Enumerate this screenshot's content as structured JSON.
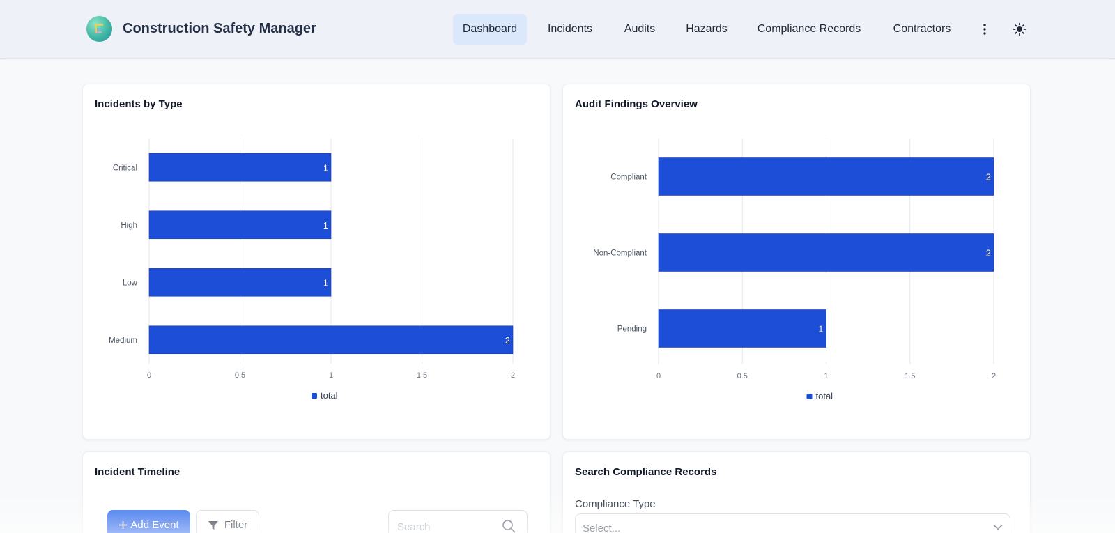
{
  "app": {
    "title": "Construction Safety Manager"
  },
  "nav": {
    "items": [
      {
        "label": "Dashboard",
        "active": true
      },
      {
        "label": "Incidents",
        "active": false
      },
      {
        "label": "Audits",
        "active": false
      },
      {
        "label": "Hazards",
        "active": false
      },
      {
        "label": "Compliance Records",
        "active": false
      },
      {
        "label": "Contractors",
        "active": false
      }
    ],
    "more_icon": "more-vertical-icon",
    "theme_icon": "sun-icon"
  },
  "colors": {
    "accent": "#2563eb",
    "bar": "#1d4ed8",
    "nav_active_bg": "#dbe7fb",
    "header_bg": "#eef2f8"
  },
  "cards": {
    "incidents_by_type": {
      "title": "Incidents by Type"
    },
    "audit_findings": {
      "title": "Audit Findings Overview"
    },
    "incident_timeline": {
      "title": "Incident Timeline",
      "add_button": "Add Event",
      "filter_button": "Filter",
      "search_placeholder": "Search"
    },
    "search_compliance": {
      "title": "Search Compliance Records",
      "field_label": "Compliance Type",
      "select_value": "Select..."
    }
  },
  "chart_data": [
    {
      "type": "bar",
      "orientation": "horizontal",
      "title": "Incidents by Type",
      "categories": [
        "Critical",
        "High",
        "Low",
        "Medium"
      ],
      "series": [
        {
          "name": "total",
          "values": [
            1,
            1,
            1,
            2
          ]
        }
      ],
      "xlim": [
        0,
        2
      ],
      "xticks": [
        "0",
        "0.5",
        "1",
        "1.5",
        "2"
      ],
      "data_labels": true,
      "grid": "vertical",
      "legend": "bottom-center"
    },
    {
      "type": "bar",
      "orientation": "horizontal",
      "title": "Audit Findings Overview",
      "categories": [
        "Compliant",
        "Non-Compliant",
        "Pending"
      ],
      "series": [
        {
          "name": "total",
          "values": [
            2,
            2,
            1
          ]
        }
      ],
      "xlim": [
        0,
        2
      ],
      "xticks": [
        "0",
        "0.5",
        "1",
        "1.5",
        "2"
      ],
      "data_labels": true,
      "grid": "vertical",
      "legend": "bottom-center"
    }
  ]
}
